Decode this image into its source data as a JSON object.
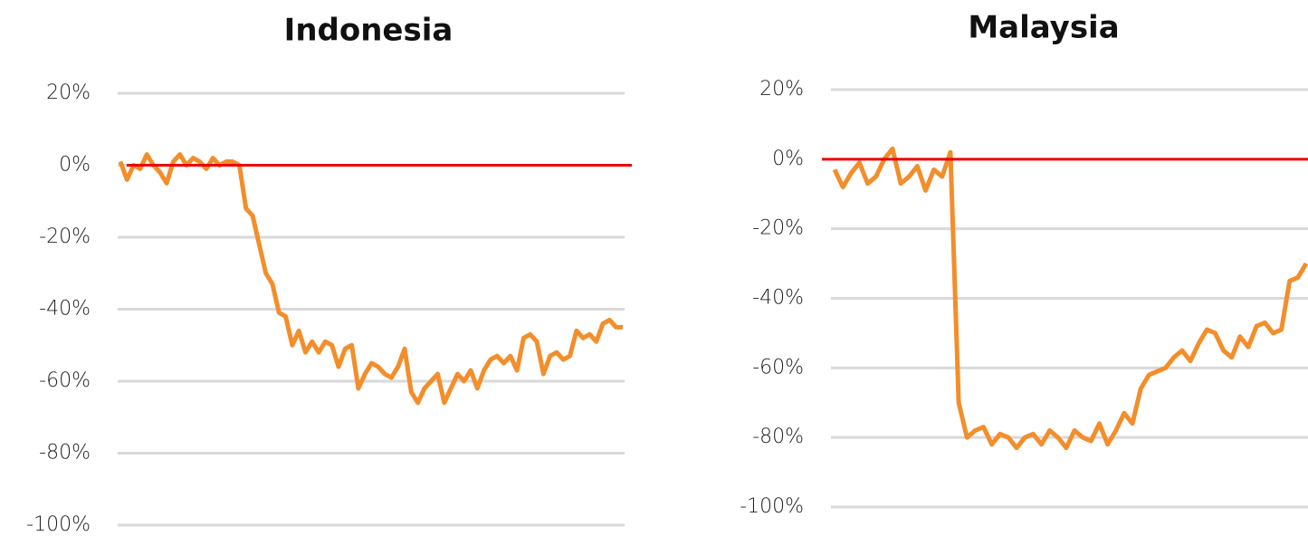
{
  "chart_data": [
    {
      "type": "line",
      "title": "Indonesia",
      "series": [
        {
          "name": "Indonesia",
          "color": "#f28e2b",
          "values": [
            1,
            -4,
            0,
            -1,
            3,
            0,
            -2,
            -5,
            1,
            3,
            0,
            2,
            1,
            -1,
            2,
            0,
            1,
            1,
            0,
            -12,
            -14,
            -22,
            -30,
            -33,
            -41,
            -42,
            -50,
            -46,
            -52,
            -49,
            -52,
            -49,
            -50,
            -56,
            -51,
            -50,
            -62,
            -58,
            -55,
            -56,
            -58,
            -59,
            -56,
            -51,
            -63,
            -66,
            -62,
            -60,
            -58,
            -66,
            -62,
            -58,
            -60,
            -57,
            -62,
            -57,
            -54,
            -53,
            -55,
            -53,
            -57,
            -48,
            -47,
            -49,
            -58,
            -53,
            -52,
            -54,
            -53,
            -46,
            -48,
            -47,
            -49,
            -44,
            -43,
            -45,
            -45
          ]
        }
      ],
      "ylim": [
        -100,
        20
      ],
      "yticks": [
        {
          "value": 20,
          "label": "20%"
        },
        {
          "value": 0,
          "label": "0%"
        },
        {
          "value": -20,
          "label": "-20%"
        },
        {
          "value": -40,
          "label": "-40%"
        },
        {
          "value": -60,
          "label": "-60%"
        },
        {
          "value": -80,
          "label": "-80%"
        },
        {
          "value": -100,
          "label": "-100%"
        }
      ],
      "grid": true,
      "reference_line": 0,
      "reference_color": "#ee0000"
    },
    {
      "type": "line",
      "title": "Malaysia",
      "series": [
        {
          "name": "Malaysia",
          "color": "#f28e2b",
          "values": [
            -3,
            -8,
            -4,
            -1,
            -7,
            -5,
            0,
            3,
            -7,
            -5,
            -2,
            -9,
            -3,
            -5,
            2,
            -70,
            -80,
            -78,
            -77,
            -82,
            -79,
            -80,
            -83,
            -80,
            -79,
            -82,
            -78,
            -80,
            -83,
            -78,
            -80,
            -81,
            -76,
            -82,
            -78,
            -73,
            -76,
            -66,
            -62,
            -61,
            -60,
            -57,
            -55,
            -58,
            -53,
            -49,
            -50,
            -55,
            -57,
            -51,
            -54,
            -48,
            -47,
            -50,
            -49,
            -35,
            -34,
            -30
          ]
        }
      ],
      "ylim": [
        -100,
        20
      ],
      "yticks": [
        {
          "value": 20,
          "label": "20%"
        },
        {
          "value": 0,
          "label": "0%"
        },
        {
          "value": -20,
          "label": "-20%"
        },
        {
          "value": -40,
          "label": "-40%"
        },
        {
          "value": -60,
          "label": "-60%"
        },
        {
          "value": -80,
          "label": "-80%"
        },
        {
          "value": -100,
          "label": "-100%"
        }
      ],
      "grid": true,
      "reference_line": 0,
      "reference_color": "#ee0000"
    }
  ]
}
